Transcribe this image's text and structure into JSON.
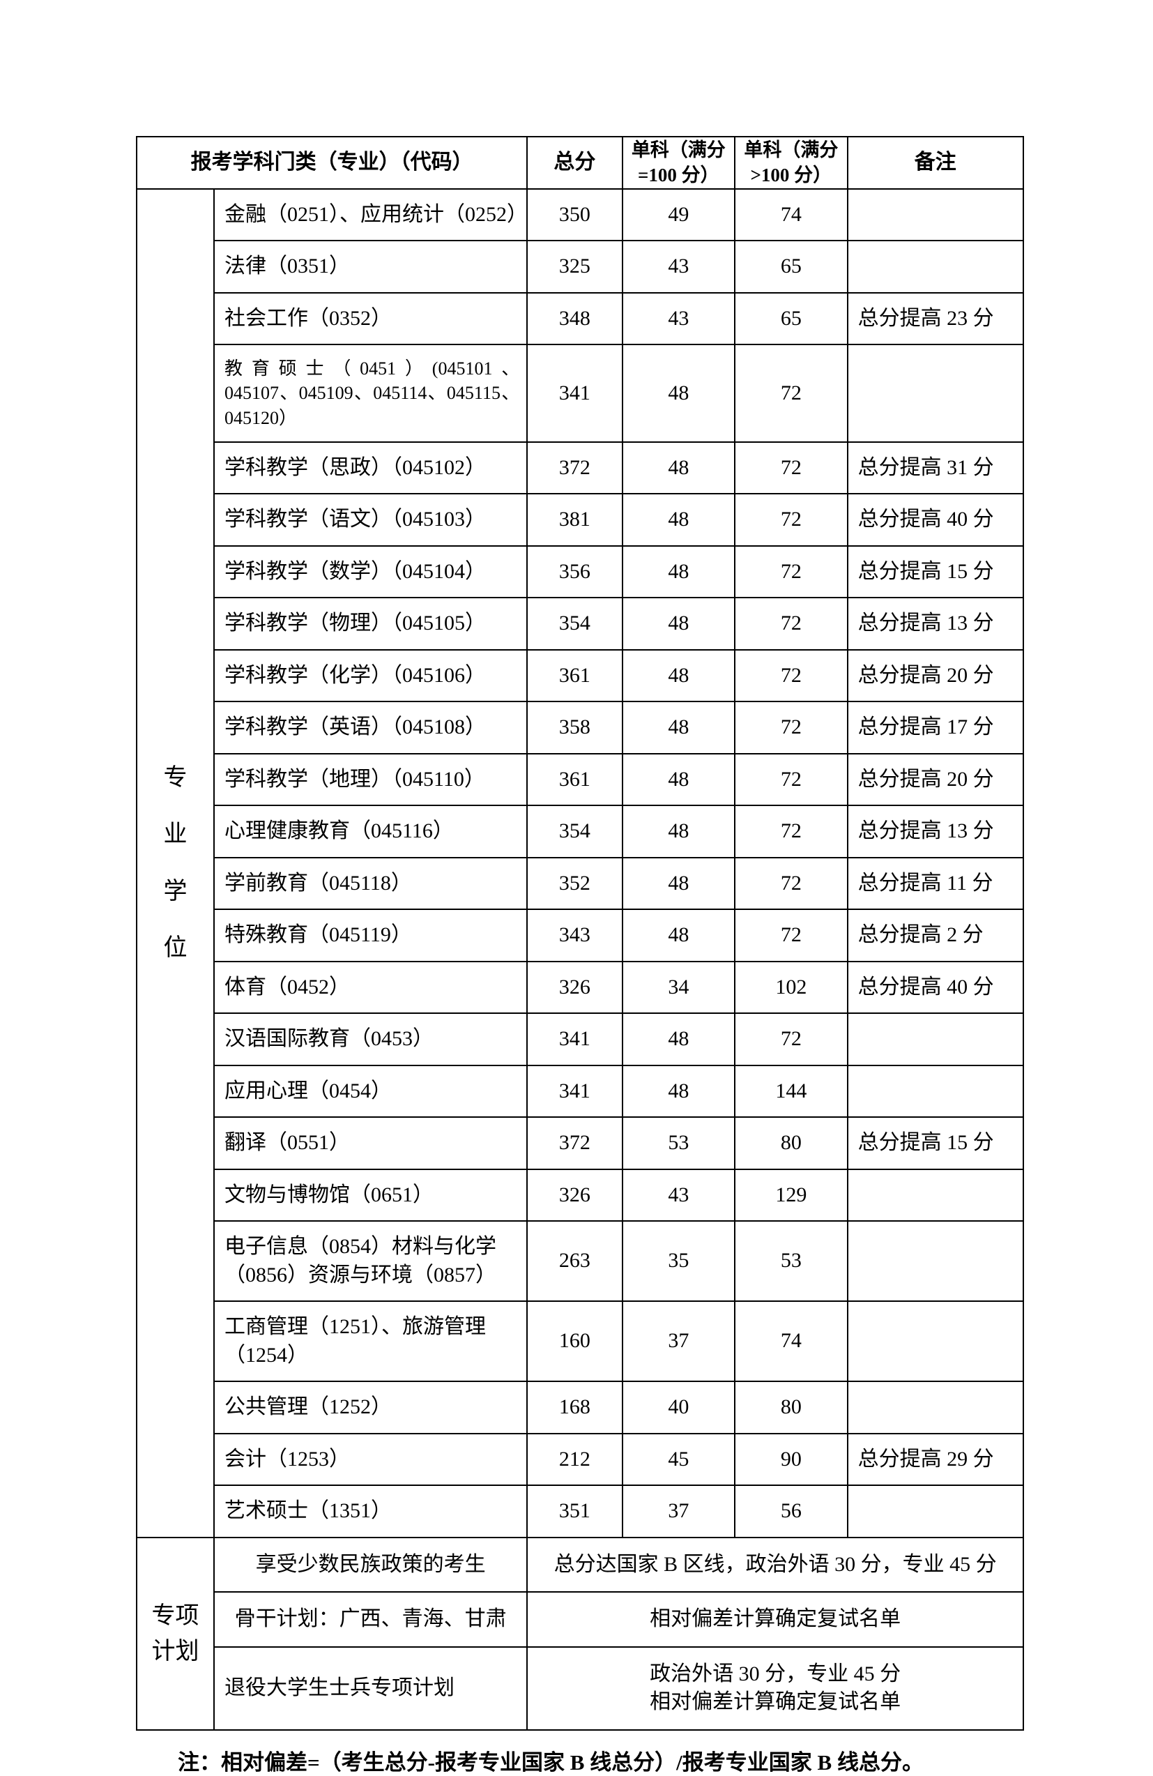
{
  "colors": {
    "background": "#ffffff",
    "text": "#000000",
    "border": "#000000"
  },
  "header": {
    "major": "报考学科门类（专业）（代码）",
    "total": "总分",
    "subj1": "单科（满分=100 分）",
    "subj2": "单科（满分>100 分）",
    "note": "备注"
  },
  "category_label_chars": [
    "专",
    "业",
    "学",
    "位"
  ],
  "rows": [
    {
      "major": "金融（0251）、应用统计（0252）",
      "total": "350",
      "s1": "49",
      "s2": "74",
      "note": ""
    },
    {
      "major": "法律（0351）",
      "total": "325",
      "s1": "43",
      "s2": "65",
      "note": ""
    },
    {
      "major": "社会工作（0352）",
      "total": "348",
      "s1": "43",
      "s2": "65",
      "note": "总分提高 23 分"
    },
    {
      "major": "教育硕士（0451）(045101、045107、045109、045114、045115、045120）",
      "total": "341",
      "s1": "48",
      "s2": "72",
      "note": "",
      "small": true
    },
    {
      "major": "学科教学（思政）（045102）",
      "total": "372",
      "s1": "48",
      "s2": "72",
      "note": "总分提高 31 分"
    },
    {
      "major": "学科教学（语文）（045103）",
      "total": "381",
      "s1": "48",
      "s2": "72",
      "note": "总分提高 40 分"
    },
    {
      "major": "学科教学（数学）（045104）",
      "total": "356",
      "s1": "48",
      "s2": "72",
      "note": "总分提高 15 分"
    },
    {
      "major": "学科教学（物理）（045105）",
      "total": "354",
      "s1": "48",
      "s2": "72",
      "note": "总分提高 13 分"
    },
    {
      "major": "学科教学（化学）（045106）",
      "total": "361",
      "s1": "48",
      "s2": "72",
      "note": "总分提高 20 分"
    },
    {
      "major": "学科教学（英语）（045108）",
      "total": "358",
      "s1": "48",
      "s2": "72",
      "note": "总分提高 17 分"
    },
    {
      "major": "学科教学（地理）（045110）",
      "total": "361",
      "s1": "48",
      "s2": "72",
      "note": "总分提高 20 分"
    },
    {
      "major": "心理健康教育（045116）",
      "total": "354",
      "s1": "48",
      "s2": "72",
      "note": "总分提高 13 分"
    },
    {
      "major": "学前教育（045118）",
      "total": "352",
      "s1": "48",
      "s2": "72",
      "note": "总分提高 11 分"
    },
    {
      "major": "特殊教育（045119）",
      "total": "343",
      "s1": "48",
      "s2": "72",
      "note": "总分提高 2 分"
    },
    {
      "major": "体育（0452）",
      "total": "326",
      "s1": "34",
      "s2": "102",
      "note": "总分提高 40 分"
    },
    {
      "major": "汉语国际教育（0453）",
      "total": "341",
      "s1": "48",
      "s2": "72",
      "note": ""
    },
    {
      "major": "应用心理（0454）",
      "total": "341",
      "s1": "48",
      "s2": "144",
      "note": ""
    },
    {
      "major": "翻译（0551）",
      "total": "372",
      "s1": "53",
      "s2": "80",
      "note": "总分提高 15 分"
    },
    {
      "major": "文物与博物馆（0651）",
      "total": "326",
      "s1": "43",
      "s2": "129",
      "note": ""
    },
    {
      "major": "电子信息（0854）材料与化学（0856）资源与环境（0857）",
      "total": "263",
      "s1": "35",
      "s2": "53",
      "note": "",
      "wide": true
    },
    {
      "major": "工商管理（1251）、旅游管理（1254）",
      "total": "160",
      "s1": "37",
      "s2": "74",
      "note": ""
    },
    {
      "major": "公共管理（1252）",
      "total": "168",
      "s1": "40",
      "s2": "80",
      "note": ""
    },
    {
      "major": "会计（1253）",
      "total": "212",
      "s1": "45",
      "s2": "90",
      "note": "总分提高 29 分"
    },
    {
      "major": "艺术硕士（1351）",
      "total": "351",
      "s1": "37",
      "s2": "56",
      "note": ""
    }
  ],
  "special": {
    "category_label": "专项计划",
    "row1_left": "享受少数民族政策的考生",
    "row1_right": "总分达国家 B 区线，政治外语 30 分，专业 45 分",
    "row2_left": "骨干计划：广西、青海、甘肃",
    "row2_right": "相对偏差计算确定复试名单",
    "row3_left": "退役大学生士兵专项计划",
    "row3_right_line1": "政治外语 30 分，专业 45 分",
    "row3_right_line2": "相对偏差计算确定复试名单"
  },
  "footnote": "注：相对偏差=（考生总分-报考专业国家 B 线总分）/报考专业国家 B 线总分。"
}
